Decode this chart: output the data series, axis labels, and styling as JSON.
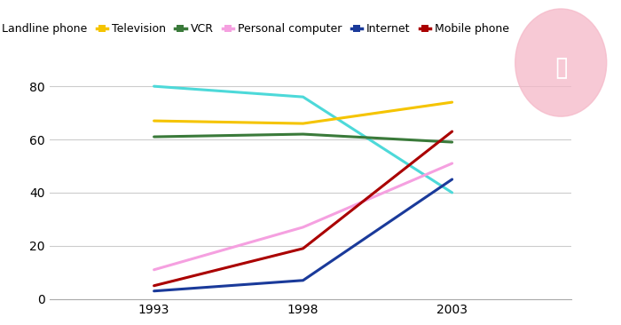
{
  "years": [
    1993,
    1998,
    2003
  ],
  "series": {
    "Landline phone": {
      "values": [
        80,
        76,
        40
      ],
      "color": "#4DD9D9"
    },
    "Television": {
      "values": [
        67,
        66,
        74
      ],
      "color": "#F5C400"
    },
    "VCR": {
      "values": [
        61,
        62,
        59
      ],
      "color": "#3A7A3A"
    },
    "Personal computer": {
      "values": [
        11,
        27,
        51
      ],
      "color": "#F5A0E0"
    },
    "Internet": {
      "values": [
        3,
        7,
        45
      ],
      "color": "#1A3A9A"
    },
    "Mobile phone": {
      "values": [
        5,
        19,
        63
      ],
      "color": "#AA0000"
    }
  },
  "ylim": [
    0,
    88
  ],
  "yticks": [
    0,
    20,
    40,
    60,
    80
  ],
  "xticks": [
    1993,
    1998,
    2003
  ],
  "background_color": "#ffffff",
  "grid_color": "#cccccc",
  "linewidth": 2.2,
  "legend_order": [
    "Landline phone",
    "Television",
    "VCR",
    "Personal computer",
    "Internet",
    "Mobile phone"
  ],
  "watermark_color": "#F5B8C8",
  "watermark_alpha": 0.75
}
